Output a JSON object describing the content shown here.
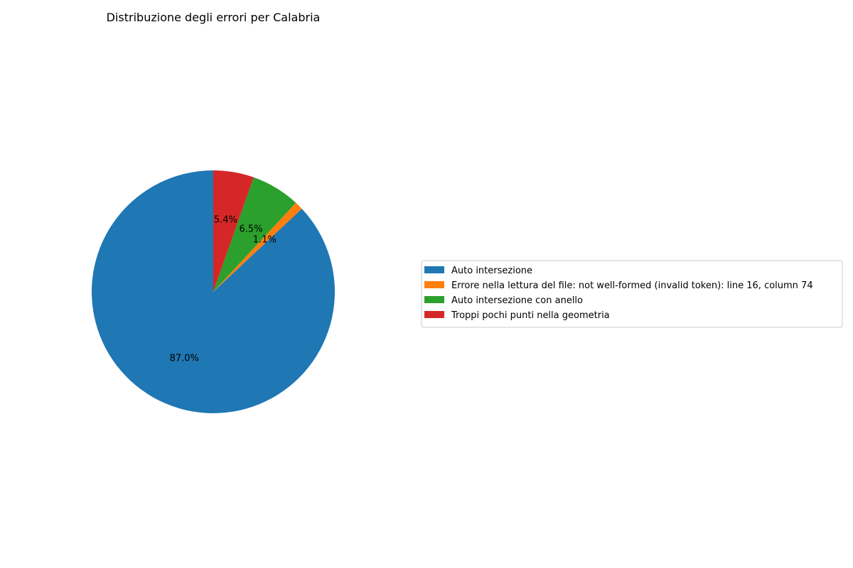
{
  "chart_data": {
    "type": "pie",
    "title": "Distribuzione degli errori per Calabria",
    "slices": [
      {
        "label": "Auto intersezione",
        "value": 87.0,
        "pct_label": "87.0%",
        "color": "#1f77b4"
      },
      {
        "label": "Errore nella lettura del file: not well-formed (invalid token): line 16, column 74",
        "value": 1.1,
        "pct_label": "1.1%",
        "color": "#ff7f0e"
      },
      {
        "label": "Auto intersezione con anello",
        "value": 6.5,
        "pct_label": "6.5%",
        "color": "#2ca02c"
      },
      {
        "label": "Troppi pochi punti nella geometria",
        "value": 5.4,
        "pct_label": "5.4%",
        "color": "#d62728"
      }
    ],
    "start_angle_deg": 90,
    "direction": "counterclockwise",
    "legend_position": "center-right"
  }
}
